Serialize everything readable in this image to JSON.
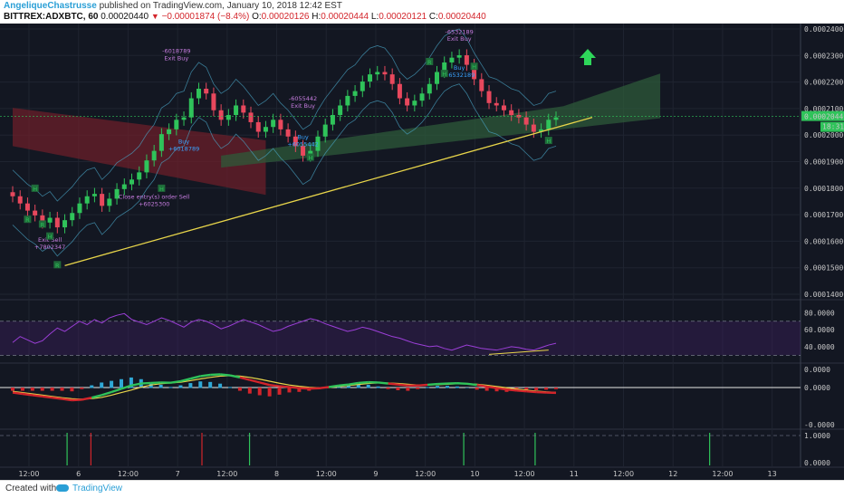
{
  "header": {
    "author": "AngeliqueChastrusse",
    "published": "published on TradingView.com, January 10, 2018 12:42 EST",
    "symbol": "BITTREX:ADXBTC, 60",
    "last": "0.00020440",
    "change": "−0.00001874 (−8.4%)",
    "o_label": "O:",
    "o_value": "0.00020126",
    "h_label": "H:",
    "h_value": "0.00020444",
    "l_label": "L:",
    "l_value": "0.00020121",
    "c_label": "C:",
    "c_value": "0.00020440"
  },
  "footer": {
    "created_with": "Created with",
    "brand": "TradingView"
  },
  "colors": {
    "background": "#131722",
    "up_candle": "#2fc35a",
    "down_candle": "#e8485d",
    "trendline": "#e8d54a",
    "cloud_green": "#2e5a3a",
    "cloud_red": "#6b1f2a",
    "rsi": "#9c3fd8",
    "macd_up": "#2fc35a",
    "macd_down": "#d3252b",
    "signal": "#e8d54a",
    "arrow": "#2ed65a"
  },
  "chart_data": [
    {
      "type": "line",
      "name": "price",
      "ylim": [
        0.00013,
        0.000241
      ],
      "y_ticks": [
        "0.00024000",
        "0.00023000",
        "0.00022000",
        "0.00021000",
        "0.00020000",
        "0.00019000",
        "0.00018000",
        "0.00017000",
        "0.00016000",
        "0.00015000",
        "0.00014000"
      ],
      "price_tag": "0.00020440",
      "countdown_tag": "18:31",
      "x_ticks": [
        "12:00",
        "6",
        "12:00",
        "7",
        "12:00",
        "8",
        "12:00",
        "9",
        "12:00",
        "10",
        "12:00",
        "11",
        "12:00",
        "12",
        "12:00",
        "13"
      ],
      "close": [
        0.000171,
        0.000168,
        0.000165,
        0.000163,
        0.00016,
        0.000162,
        0.000158,
        0.000161,
        0.000164,
        0.000168,
        0.000171,
        0.000172,
        0.000167,
        0.00017,
        0.000174,
        0.000176,
        0.000178,
        0.000181,
        0.000186,
        0.00019,
        0.000197,
        0.000199,
        0.000203,
        0.000204,
        0.000212,
        0.000216,
        0.000214,
        0.000207,
        0.000203,
        0.000205,
        0.000209,
        0.000206,
        0.000202,
        0.000198,
        0.0002,
        0.000203,
        0.000199,
        0.000196,
        0.000192,
        0.000188,
        0.00019,
        0.000196,
        0.000201,
        0.000205,
        0.000209,
        0.000213,
        0.000215,
        0.000219,
        0.000222,
        0.000223,
        0.000222,
        0.000218,
        0.000212,
        0.000209,
        0.000211,
        0.000214,
        0.000218,
        0.000223,
        0.000227,
        0.000229,
        0.00023,
        0.000226,
        0.00022,
        0.000215,
        0.00021,
        0.000209,
        0.000207,
        0.000205,
        0.000204,
        0.000201,
        0.000198,
        0.000199,
        0.000203,
        0.000204
      ],
      "trendline": {
        "start": 0.000142,
        "end": 0.000204
      },
      "arrow": "up",
      "annotations": [
        {
          "text": "-6018789",
          "kind": "exit"
        },
        {
          "text": "Exit Buy",
          "kind": "exit"
        },
        {
          "text": "-6055442",
          "kind": "exit"
        },
        {
          "text": "Exit Buy",
          "kind": "exit"
        },
        {
          "text": "-6532189",
          "kind": "exit"
        },
        {
          "text": "Exit Buy",
          "kind": "exit"
        },
        {
          "text": "Exit Sell",
          "kind": "exit"
        },
        {
          "text": "+7802347",
          "kind": "exit"
        },
        {
          "text": "Close entry(s) order Sell",
          "kind": "exit"
        },
        {
          "text": "+6025300",
          "kind": "exit"
        },
        {
          "text": "Buy",
          "kind": "buy"
        },
        {
          "text": "+6018789",
          "kind": "buy"
        },
        {
          "text": "Buy",
          "kind": "buy"
        },
        {
          "text": "+6055442",
          "kind": "buy"
        },
        {
          "text": "Buy",
          "kind": "buy"
        },
        {
          "text": "+6532189",
          "kind": "buy"
        }
      ],
      "markers": [
        "H",
        "R",
        "R",
        "H",
        "R",
        "H",
        "H",
        "R",
        "H",
        "H",
        "H"
      ]
    },
    {
      "type": "line",
      "name": "rsi",
      "ylim": [
        25,
        90
      ],
      "y_ticks": [
        "80.0000",
        "60.0000",
        "40.0000"
      ],
      "bands": [
        70,
        30
      ],
      "values": [
        45,
        52,
        48,
        44,
        47,
        55,
        62,
        58,
        64,
        70,
        66,
        72,
        68,
        74,
        77,
        79,
        72,
        69,
        66,
        70,
        74,
        71,
        67,
        63,
        69,
        72,
        70,
        66,
        61,
        64,
        68,
        72,
        69,
        66,
        62,
        58,
        60,
        64,
        67,
        70,
        73,
        71,
        67,
        64,
        61,
        58,
        60,
        63,
        61,
        58,
        55,
        52,
        50,
        47,
        44,
        42,
        40,
        41,
        38,
        36,
        39,
        42,
        40,
        38,
        37,
        36,
        38,
        40,
        39,
        37,
        36,
        39,
        42,
        44
      ]
    },
    {
      "type": "line",
      "name": "macd",
      "ylim": [
        -1.5e-05,
        7.5e-06
      ],
      "y_ticks": [
        "0.0000",
        "0.0000",
        "-0.0000"
      ],
      "macd": [
        -2e-06,
        -2.5e-06,
        -3e-06,
        -3.5e-06,
        -4e-06,
        -4.5e-06,
        -5e-06,
        -4.8e-06,
        -4e-06,
        -3e-06,
        -1.8e-06,
        -5e-07,
        8e-07,
        1.6e-06,
        1.8e-06,
        2e-06,
        1.9e-06,
        2.5e-06,
        3.5e-06,
        4.5e-06,
        5e-06,
        5.2e-06,
        4.8e-06,
        4e-06,
        3e-06,
        2e-06,
        1e-06,
        5e-07,
        2e-07,
        -2e-07,
        -4e-07,
        -3e-07,
        2e-07,
        8e-07,
        1.2e-06,
        1.8e-06,
        2.1e-06,
        2e-06,
        1.6e-06,
        1.2e-06,
        8e-07,
        8e-07,
        1.1e-06,
        1.4e-06,
        1.6e-06,
        1.7e-06,
        1.5e-06,
        1e-06,
        4e-07,
        -2e-07,
        -8e-07,
        -1.2e-06,
        -1.5e-06,
        -1.8e-06,
        -2e-06,
        -2.1e-06
      ],
      "signal": [
        -1.5e-06,
        -2e-06,
        -2.5e-06,
        -3e-06,
        -3.5e-06,
        -4e-06,
        -4.4e-06,
        -4.6e-06,
        -4.4e-06,
        -3.9e-06,
        -3e-06,
        -2e-06,
        -1e-06,
        1e-07,
        1e-06,
        1.5e-06,
        1.8e-06,
        2.1e-06,
        2.7e-06,
        3.4e-06,
        4e-06,
        4.5e-06,
        4.7e-06,
        4.5e-06,
        4e-06,
        3.3e-06,
        2.5e-06,
        1.7e-06,
        1e-06,
        5e-07,
        1e-07,
        -1e-07,
        0.0,
        4e-07,
        8e-07,
        1.2e-06,
        1.6e-06,
        1.8e-06,
        1.8e-06,
        1.6e-06,
        1.3e-06,
        1e-06,
        1e-06,
        1.1e-06,
        1.3e-06,
        1.5e-06,
        1.5e-06,
        1.3e-06,
        9e-07,
        4e-07,
        -1e-07,
        -6e-07,
        -1e-06,
        -1.4e-06,
        -1.7e-06,
        -1.9e-06
      ]
    },
    {
      "type": "bar",
      "name": "signals",
      "ylim": [
        0,
        1
      ],
      "y_ticks": [
        "1.0000",
        "0.0000"
      ],
      "bars": [
        {
          "pos": 0.08,
          "color": "green"
        },
        {
          "pos": 0.11,
          "color": "red"
        },
        {
          "pos": 0.25,
          "color": "red"
        },
        {
          "pos": 0.31,
          "color": "green"
        },
        {
          "pos": 0.58,
          "color": "green"
        },
        {
          "pos": 0.67,
          "color": "green"
        },
        {
          "pos": 0.89,
          "color": "green"
        }
      ]
    }
  ]
}
